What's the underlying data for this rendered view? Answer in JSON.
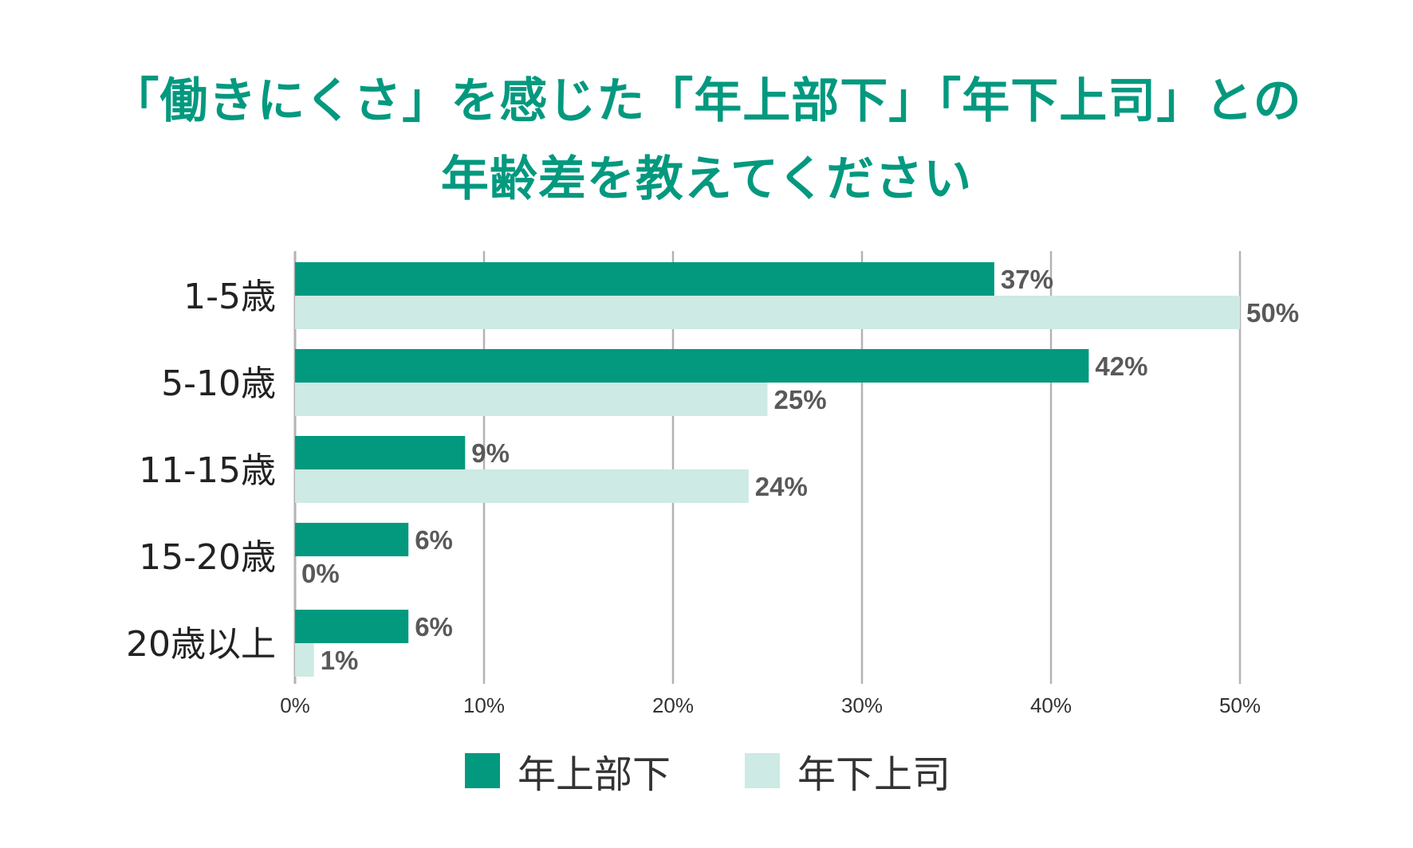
{
  "title_line1": "「働きにくさ」を感じた「年上部下」「年下上司」との",
  "title_line2": "年齢差を教えてください",
  "colors": {
    "title": "#03997f",
    "series1": "#03997f",
    "series2": "#cdeae4",
    "grid": "#b3b3b3",
    "label": "#595959",
    "axis_text": "#333333"
  },
  "chart_data": {
    "type": "bar",
    "orientation": "horizontal",
    "title": "「働きにくさ」を感じた「年上部下」「年下上司」との年齢差を教えてください",
    "categories": [
      "1-5歳",
      "5-10歳",
      "11-15歳",
      "15-20歳",
      "20歳以上"
    ],
    "series": [
      {
        "name": "年上部下",
        "values": [
          37,
          42,
          9,
          6,
          6
        ],
        "labels": [
          "37%",
          "42%",
          "9%",
          "6%",
          "6%"
        ]
      },
      {
        "name": "年下上司",
        "values": [
          50,
          25,
          24,
          0,
          1
        ],
        "labels": [
          "50%",
          "25%",
          "24%",
          "0%",
          "1%"
        ]
      }
    ],
    "xlim": [
      0,
      50
    ],
    "xticks": [
      "0%",
      "10%",
      "20%",
      "30%",
      "40%",
      "50%"
    ],
    "grid": true,
    "legend": "bottom"
  }
}
